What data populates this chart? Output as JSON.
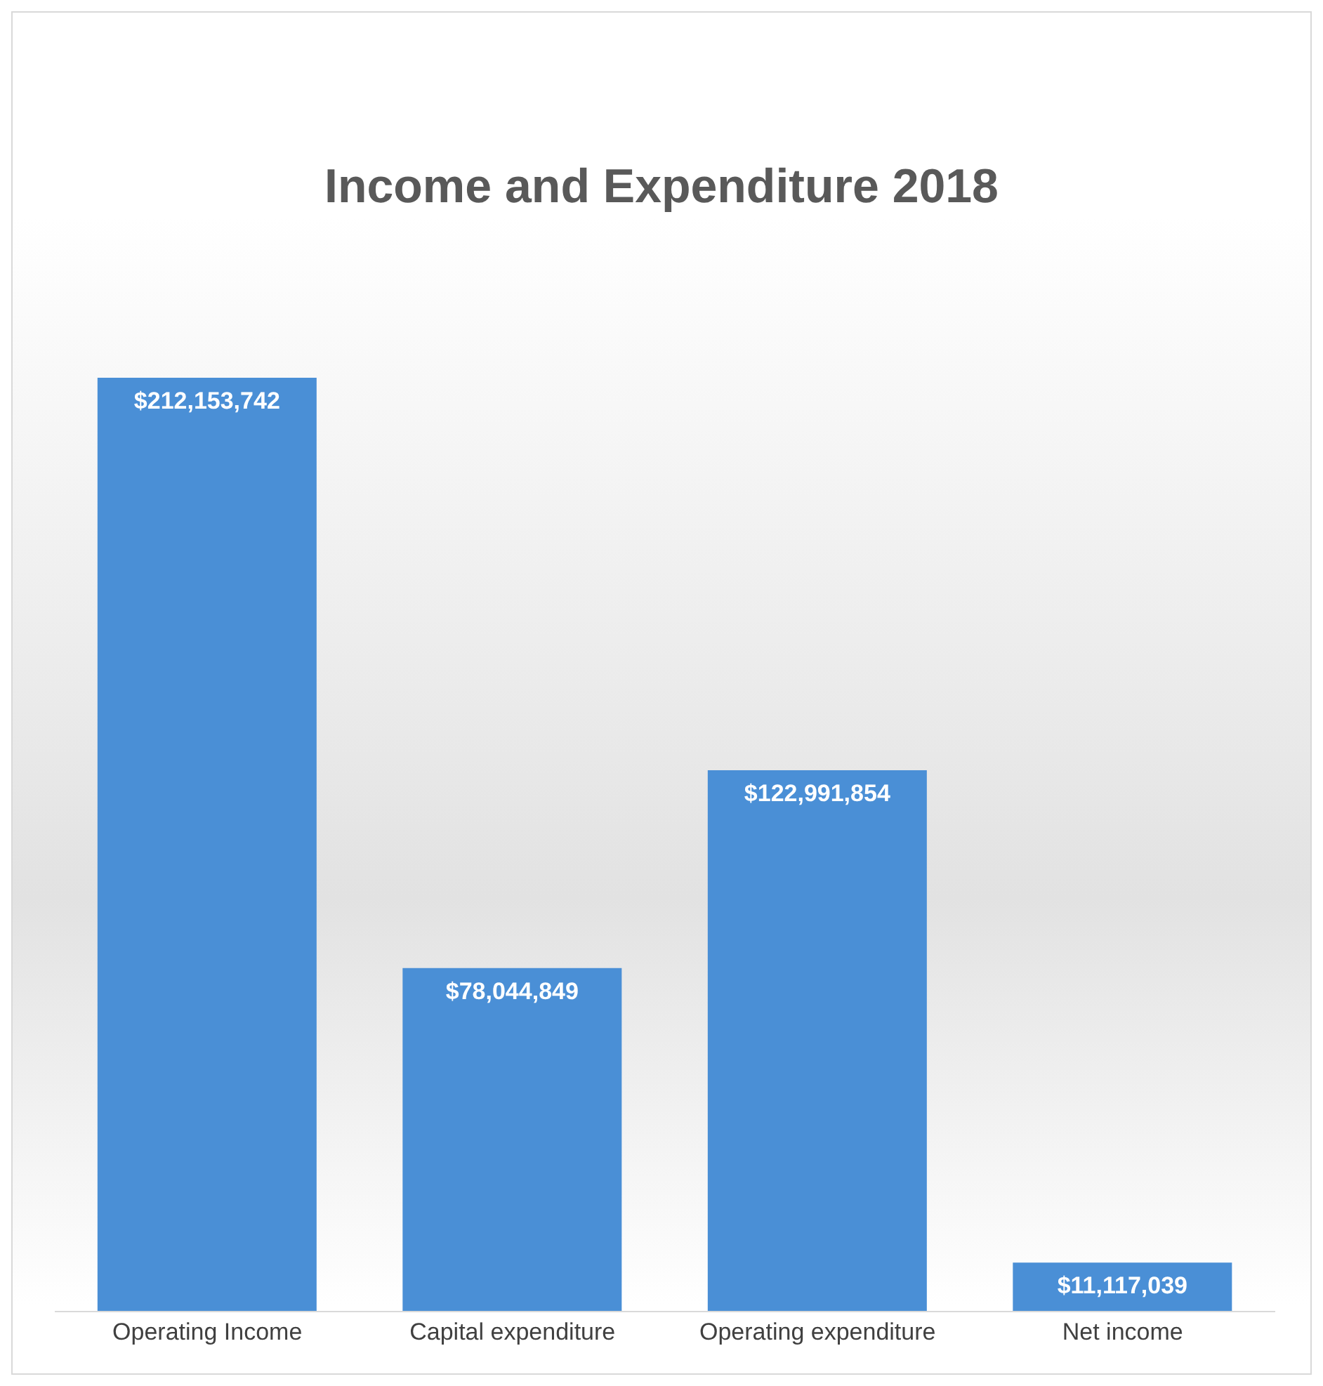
{
  "chart_data": {
    "type": "bar",
    "title": "Income and Expenditure 2018",
    "categories": [
      "Operating Income",
      "Capital expenditure",
      "Operating expenditure",
      "Net income"
    ],
    "values": [
      212153742,
      78044849,
      122991854,
      11117039
    ],
    "value_labels": [
      "$212,153,742",
      "$78,044,849",
      "$122,991,854",
      "$11,117,039"
    ],
    "color": "#4a8fd6",
    "grid": false,
    "legend": false
  }
}
